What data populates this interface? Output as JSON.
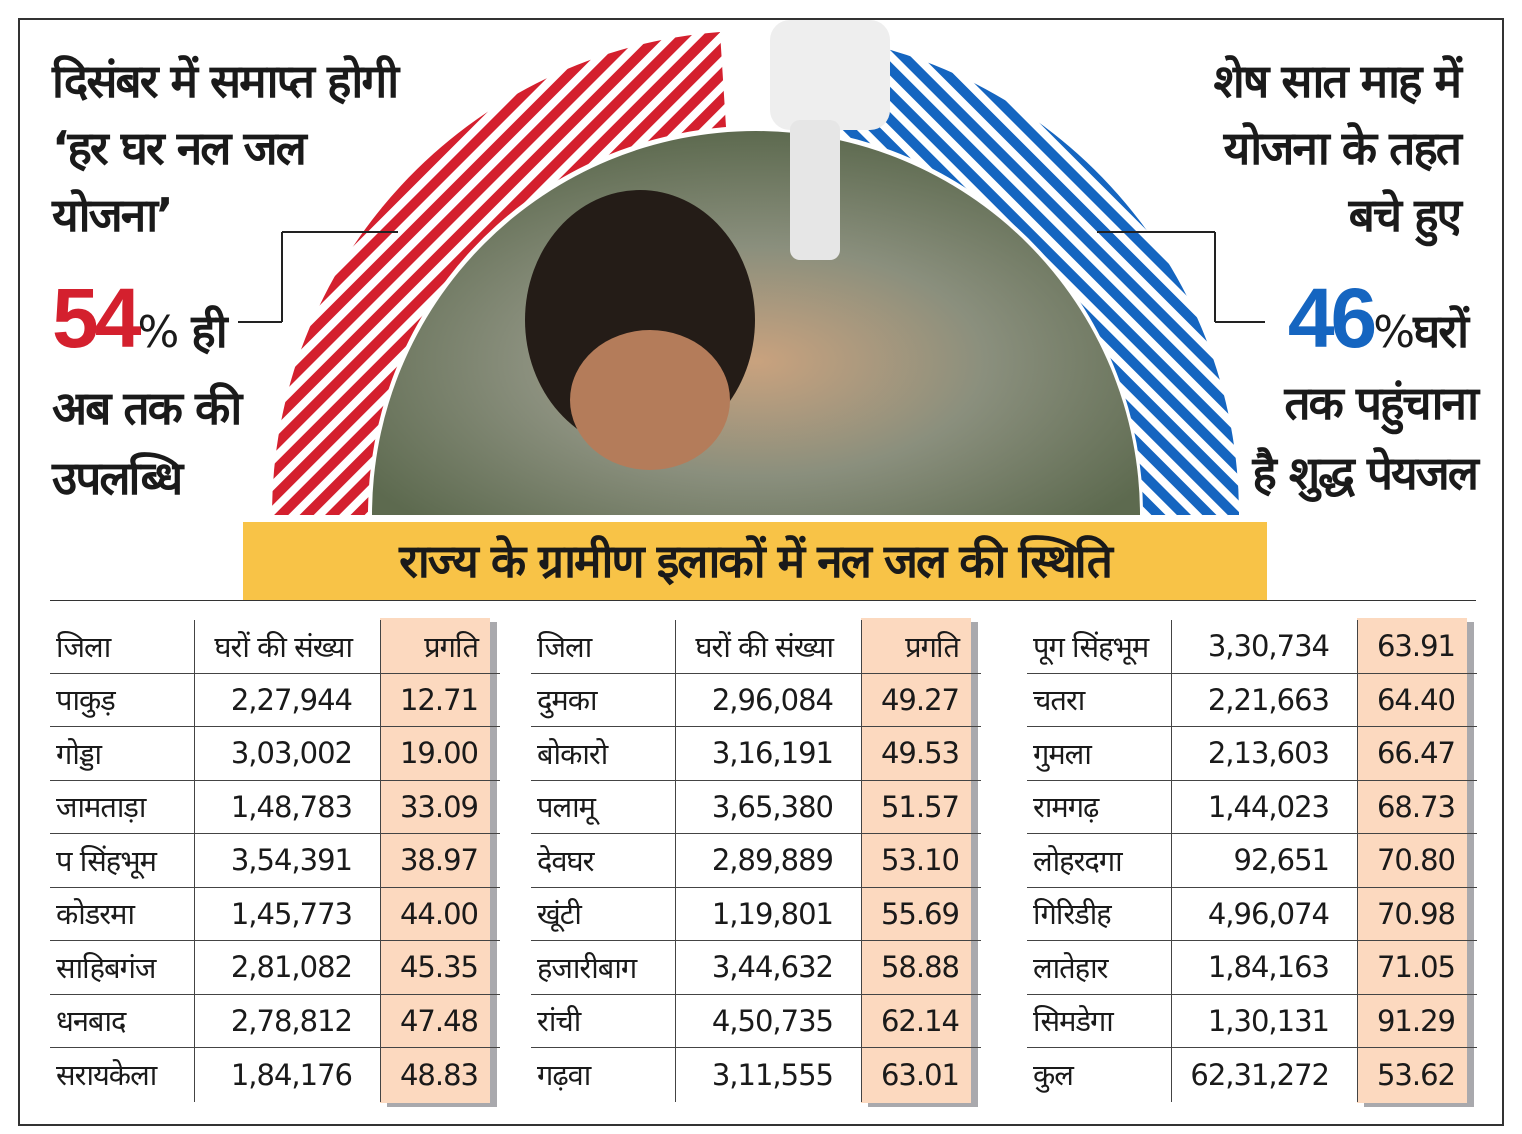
{
  "left_text": {
    "line1": "दिसंबर में समाप्त होगी",
    "line2": "‘हर घर नल जल",
    "line3": "योजना’",
    "big": "54",
    "pct": "%",
    "after": "ही",
    "line5": "अब तक की",
    "line6": "उपलब्धि"
  },
  "right_text": {
    "line1": "शेष सात माह में",
    "line2": "योजना के तहत",
    "line3": "बचे हुए",
    "big": "46",
    "pct": "%",
    "after": "घरों",
    "line5": "तक पहुंचाना",
    "line6": "है शुद्ध पेयजल"
  },
  "colors": {
    "achieved": "#d4202e",
    "remaining": "#1565c0",
    "banner": "#f8c347",
    "progress_col": "#fcd9bf"
  },
  "banner": "राज्य के ग्रामीण इलाकों में नल जल की स्थिति",
  "tables": [
    {
      "headers": [
        "जिला",
        "घरों की संख्या",
        "प्रगति"
      ],
      "rows": [
        [
          "पाकुड़",
          "2,27,944",
          "12.71"
        ],
        [
          "गोड्डा",
          "3,03,002",
          "19.00"
        ],
        [
          "जामताड़ा",
          "1,48,783",
          "33.09"
        ],
        [
          "प सिंहभूम",
          "3,54,391",
          "38.97"
        ],
        [
          "कोडरमा",
          "1,45,773",
          "44.00"
        ],
        [
          "साहिबगंज",
          "2,81,082",
          "45.35"
        ],
        [
          "धनबाद",
          "2,78,812",
          "47.48"
        ],
        [
          "सरायकेला",
          "1,84,176",
          "48.83"
        ]
      ]
    },
    {
      "headers": [
        "जिला",
        "घरों की संख्या",
        "प्रगति"
      ],
      "rows": [
        [
          "दुमका",
          "2,96,084",
          "49.27"
        ],
        [
          "बोकारो",
          "3,16,191",
          "49.53"
        ],
        [
          "पलामू",
          "3,65,380",
          "51.57"
        ],
        [
          "देवघर",
          "2,89,889",
          "53.10"
        ],
        [
          "खूंटी",
          "1,19,801",
          "55.69"
        ],
        [
          "हजारीबाग",
          "3,44,632",
          "58.88"
        ],
        [
          "रांची",
          "4,50,735",
          "62.14"
        ],
        [
          "गढ़वा",
          "3,11,555",
          "63.01"
        ]
      ]
    },
    {
      "headers": null,
      "rows": [
        [
          "पूग सिंहभूम",
          "3,30,734",
          "63.91"
        ],
        [
          "चतरा",
          "2,21,663",
          "64.40"
        ],
        [
          "गुमला",
          "2,13,603",
          "66.47"
        ],
        [
          "रामगढ़",
          "1,44,023",
          "68.73"
        ],
        [
          "लोहरदगा",
          "92,651",
          "70.80"
        ],
        [
          "गिरिडीह",
          "4,96,074",
          "70.98"
        ],
        [
          "लातेहार",
          "1,84,163",
          "71.05"
        ],
        [
          "सिमडेगा",
          "1,30,131",
          "91.29"
        ],
        [
          "कुल",
          "62,31,272",
          "53.62"
        ]
      ]
    }
  ]
}
